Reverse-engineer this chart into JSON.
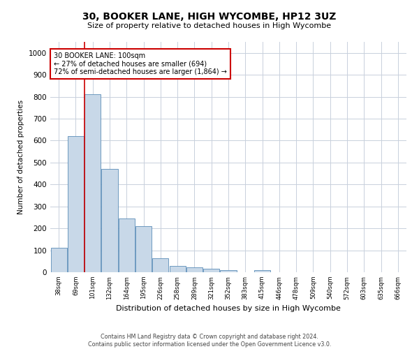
{
  "title": "30, BOOKER LANE, HIGH WYCOMBE, HP12 3UZ",
  "subtitle": "Size of property relative to detached houses in High Wycombe",
  "xlabel": "Distribution of detached houses by size in High Wycombe",
  "ylabel": "Number of detached properties",
  "footnote1": "Contains HM Land Registry data © Crown copyright and database right 2024.",
  "footnote2": "Contains public sector information licensed under the Open Government Licence v3.0.",
  "annotation_line1": "30 BOOKER LANE: 100sqm",
  "annotation_line2": "← 27% of detached houses are smaller (694)",
  "annotation_line3": "72% of semi-detached houses are larger (1,864) →",
  "bar_color": "#c8d8e8",
  "bar_edge_color": "#5b8db8",
  "line_color": "#cc0000",
  "annotation_box_color": "#cc0000",
  "grid_color": "#c8d0dc",
  "background_color": "#ffffff",
  "categories": [
    "38sqm",
    "69sqm",
    "101sqm",
    "132sqm",
    "164sqm",
    "195sqm",
    "226sqm",
    "258sqm",
    "289sqm",
    "321sqm",
    "352sqm",
    "383sqm",
    "415sqm",
    "446sqm",
    "478sqm",
    "509sqm",
    "540sqm",
    "572sqm",
    "603sqm",
    "635sqm",
    "666sqm"
  ],
  "values": [
    110,
    620,
    810,
    470,
    245,
    210,
    65,
    28,
    22,
    16,
    10,
    0,
    8,
    0,
    0,
    0,
    0,
    0,
    0,
    0,
    0
  ],
  "property_bar_index": 2,
  "ylim": [
    0,
    1050
  ],
  "yticks": [
    0,
    100,
    200,
    300,
    400,
    500,
    600,
    700,
    800,
    900,
    1000
  ]
}
